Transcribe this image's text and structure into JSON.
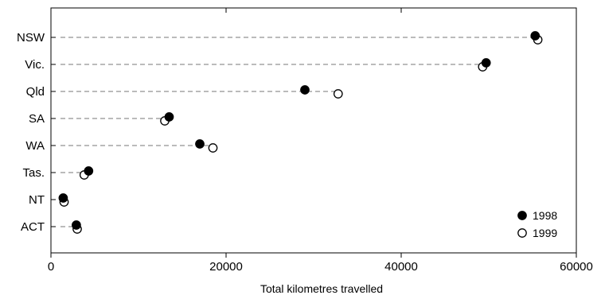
{
  "chart_data": {
    "type": "scatter",
    "categories": [
      "NSW",
      "Vic.",
      "Qld",
      "SA",
      "WA",
      "Tas.",
      "NT",
      "ACT"
    ],
    "series": [
      {
        "name": "1998",
        "marker": "filled-circle",
        "values": [
          55300,
          49700,
          29000,
          13500,
          17000,
          4300,
          1400,
          2900
        ]
      },
      {
        "name": "1999",
        "marker": "open-circle",
        "values": [
          55600,
          49300,
          32800,
          13000,
          18500,
          3800,
          1500,
          3000
        ]
      }
    ],
    "title": "",
    "xlabel": "Total kilometres travelled",
    "ylabel": "",
    "xlim": [
      0,
      60000
    ],
    "xticks": [
      0,
      20000,
      40000,
      60000
    ],
    "xtick_labels": [
      "0",
      "20000",
      "40000",
      "60000"
    ],
    "grid": false,
    "leader_lines": "dashed",
    "legend_position": "bottom-right"
  },
  "colors": {
    "axis": "#000000",
    "leader": "#777777",
    "marker": "#000000",
    "background": "#ffffff"
  }
}
